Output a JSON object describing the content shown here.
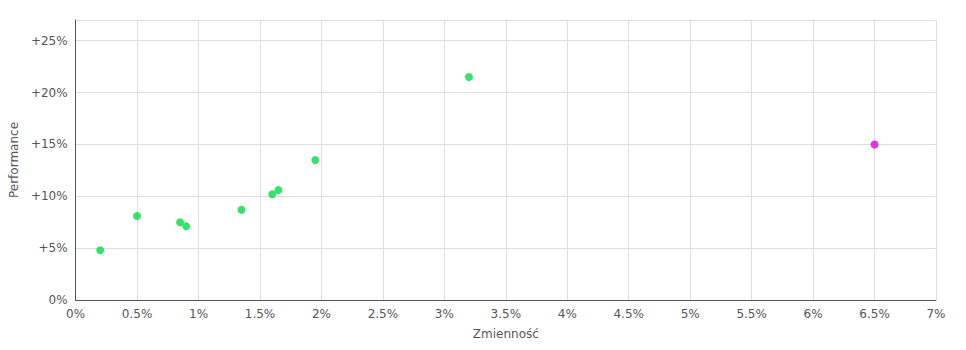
{
  "chart_data": {
    "type": "scatter",
    "xlabel": "Zmienność",
    "ylabel": "Performance",
    "series": [
      {
        "color": "#00dd44",
        "x": [
          0.2,
          0.5,
          0.85,
          0.9,
          1.35,
          1.6,
          1.65,
          1.95,
          3.2
        ],
        "values": [
          4.8,
          8.1,
          7.5,
          7.1,
          8.7,
          10.2,
          10.6,
          13.5,
          21.5
        ]
      },
      {
        "color": "#dd00dd",
        "x": [
          6.5
        ],
        "values": [
          15.0
        ]
      }
    ],
    "xlim": [
      0.0,
      7.0
    ],
    "xticks": [
      {
        "value": 0.0,
        "label": "0%"
      },
      {
        "value": 0.5,
        "label": "0.5%"
      },
      {
        "value": 1.0,
        "label": "1%"
      },
      {
        "value": 1.5,
        "label": "1.5%"
      },
      {
        "value": 2.0,
        "label": "2%"
      },
      {
        "value": 2.5,
        "label": "2.5%"
      },
      {
        "value": 3.0,
        "label": "3%"
      },
      {
        "value": 3.5,
        "label": "3.5%"
      },
      {
        "value": 4.0,
        "label": "4%"
      },
      {
        "value": 4.5,
        "label": "4.5%"
      },
      {
        "value": 5.0,
        "label": "5%"
      },
      {
        "value": 5.5,
        "label": "5.5%"
      },
      {
        "value": 6.0,
        "label": "6%"
      },
      {
        "value": 6.5,
        "label": "6.5%"
      },
      {
        "value": 7.0,
        "label": "7%"
      }
    ],
    "ylim": [
      0,
      27
    ],
    "yticks": [
      {
        "value": 0,
        "label": "0%"
      },
      {
        "value": 5,
        "label": "+5%"
      },
      {
        "value": 10,
        "label": "+10%"
      },
      {
        "value": 15,
        "label": "+15%"
      },
      {
        "value": 20,
        "label": "+20%"
      },
      {
        "value": 25,
        "label": "+25%"
      }
    ],
    "grid": true
  }
}
